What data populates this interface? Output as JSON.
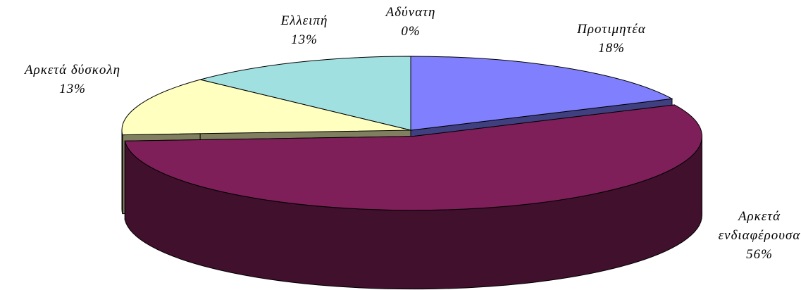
{
  "chart_data": {
    "type": "pie3d",
    "categories": [
      "Προτιμητέα",
      "Αρκετά ενδιαφέρουσα",
      "Αρκετά δύσκολη",
      "Ελλειπή",
      "Αδύνατη"
    ],
    "values": [
      18,
      56,
      13,
      13,
      0
    ],
    "value_labels": [
      "18%",
      "56%",
      "13%",
      "13%",
      "0%"
    ],
    "colors": [
      "#8080ff",
      "#7f1f5a",
      "#ffffc0",
      "#a0e0e0",
      "#ff8080"
    ],
    "exploded": [
      1
    ]
  }
}
